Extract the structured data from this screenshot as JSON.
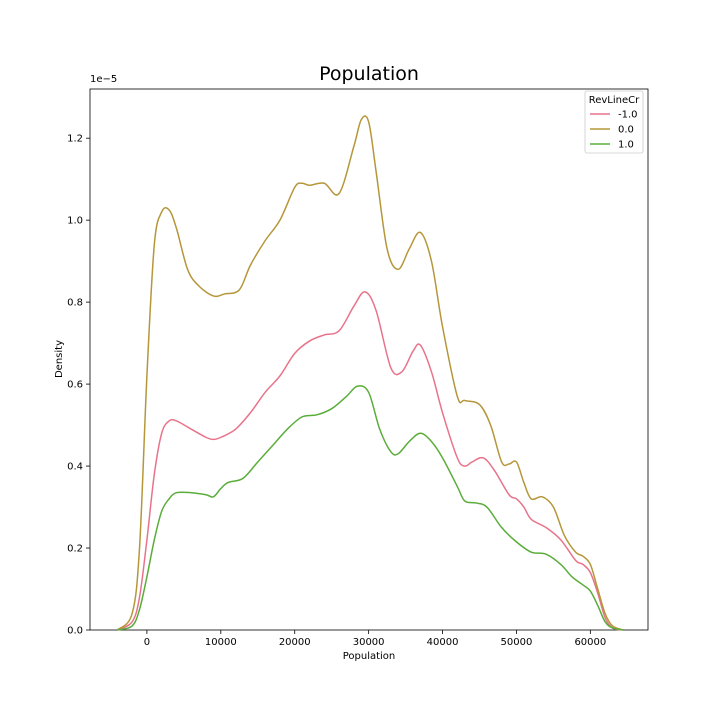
{
  "chart_data": {
    "type": "line",
    "title": "Population",
    "xlabel": "Population",
    "ylabel": "Density",
    "y_offset_label": "1e−5",
    "xlim": [
      -7700,
      67800
    ],
    "ylim": [
      0,
      1.32
    ],
    "x_ticks": [
      0,
      10000,
      20000,
      30000,
      40000,
      50000,
      60000
    ],
    "x_tick_labels": [
      "0",
      "10000",
      "20000",
      "30000",
      "40000",
      "50000",
      "60000"
    ],
    "y_ticks": [
      0.0,
      0.2,
      0.4,
      0.6,
      0.8,
      1.0,
      1.2
    ],
    "y_tick_labels": [
      "0.0",
      "0.2",
      "0.4",
      "0.6",
      "0.8",
      "1.0",
      "1.2"
    ],
    "grid": false,
    "legend": {
      "title": "RevLineCr",
      "placement": "top-right"
    },
    "series": [
      {
        "name": "-1.0",
        "color": "#e8738a",
        "x": [
          -4000,
          -2000,
          -1000,
          0,
          1000,
          2000,
          3000,
          4000,
          6000,
          8000,
          9000,
          10000,
          12000,
          14000,
          16000,
          18000,
          20000,
          22000,
          24000,
          26000,
          28000,
          29500,
          31000,
          33000,
          34500,
          36000,
          37000,
          38500,
          40000,
          42000,
          43000,
          44000,
          45500,
          47000,
          49000,
          50000,
          51000,
          52000,
          54000,
          56000,
          58000,
          59000,
          60000,
          61000,
          62000,
          63000,
          64500
        ],
        "y": [
          0.0,
          0.02,
          0.08,
          0.22,
          0.38,
          0.48,
          0.51,
          0.51,
          0.49,
          0.47,
          0.465,
          0.47,
          0.49,
          0.53,
          0.58,
          0.62,
          0.675,
          0.705,
          0.72,
          0.73,
          0.79,
          0.825,
          0.78,
          0.64,
          0.63,
          0.68,
          0.695,
          0.63,
          0.53,
          0.42,
          0.4,
          0.41,
          0.42,
          0.39,
          0.33,
          0.32,
          0.3,
          0.27,
          0.25,
          0.22,
          0.17,
          0.16,
          0.14,
          0.09,
          0.03,
          0.005,
          0.0
        ]
      },
      {
        "name": "0.0",
        "color": "#b5973a",
        "x": [
          -4000,
          -2000,
          -1000,
          0,
          1000,
          2000,
          3000,
          4000,
          5500,
          7000,
          9000,
          10500,
          12500,
          14000,
          16000,
          18000,
          20000,
          21000,
          22000,
          24000,
          26000,
          28000,
          29000,
          30000,
          31000,
          32500,
          34000,
          35500,
          37000,
          38500,
          40000,
          42000,
          43000,
          45000,
          46500,
          48000,
          49000,
          50000,
          51000,
          52000,
          53500,
          55000,
          56500,
          58000,
          59000,
          60000,
          61000,
          62000,
          63000,
          64500
        ],
        "y": [
          0.0,
          0.04,
          0.2,
          0.62,
          0.94,
          1.02,
          1.025,
          0.98,
          0.88,
          0.84,
          0.815,
          0.82,
          0.83,
          0.89,
          0.95,
          1.0,
          1.08,
          1.09,
          1.085,
          1.09,
          1.065,
          1.18,
          1.245,
          1.24,
          1.12,
          0.93,
          0.88,
          0.93,
          0.97,
          0.9,
          0.74,
          0.57,
          0.56,
          0.55,
          0.5,
          0.41,
          0.405,
          0.41,
          0.36,
          0.32,
          0.325,
          0.3,
          0.23,
          0.19,
          0.18,
          0.16,
          0.1,
          0.04,
          0.01,
          0.0
        ]
      },
      {
        "name": "1.0",
        "color": "#5aad3a",
        "x": [
          -4000,
          -2000,
          -1000,
          0,
          1000,
          2000,
          3000,
          4000,
          6000,
          8000,
          9000,
          10000,
          11000,
          13000,
          15000,
          17000,
          19000,
          21000,
          23000,
          25000,
          27000,
          28500,
          30000,
          31500,
          33000,
          34000,
          35500,
          37000,
          38500,
          40000,
          42000,
          43000,
          44500,
          46000,
          48000,
          50000,
          52000,
          54000,
          56000,
          57500,
          59000,
          60000,
          61000,
          62000,
          63000,
          64500
        ],
        "y": [
          0.0,
          0.01,
          0.05,
          0.13,
          0.22,
          0.29,
          0.32,
          0.335,
          0.335,
          0.33,
          0.325,
          0.345,
          0.36,
          0.37,
          0.41,
          0.45,
          0.49,
          0.52,
          0.525,
          0.54,
          0.57,
          0.595,
          0.58,
          0.49,
          0.435,
          0.43,
          0.46,
          0.48,
          0.46,
          0.42,
          0.35,
          0.315,
          0.31,
          0.3,
          0.25,
          0.215,
          0.19,
          0.185,
          0.16,
          0.13,
          0.11,
          0.095,
          0.06,
          0.02,
          0.005,
          0.0
        ]
      }
    ]
  }
}
